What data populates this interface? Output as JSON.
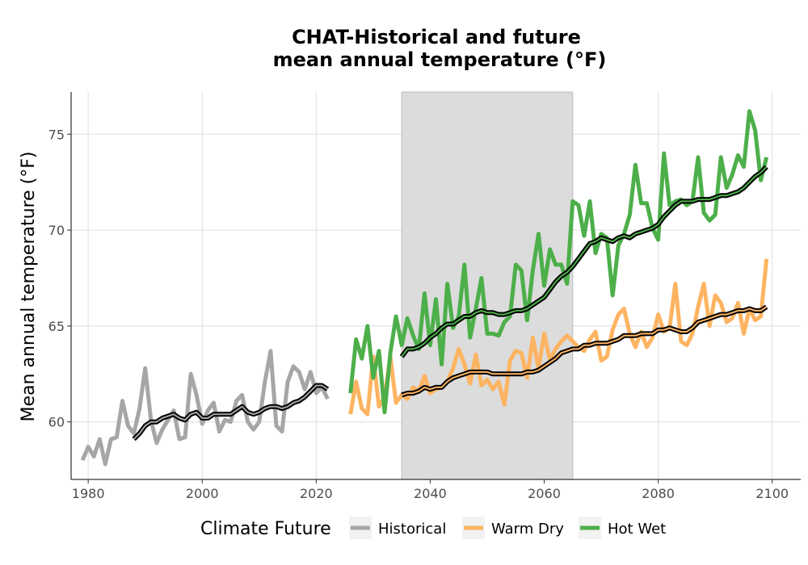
{
  "chart_data": {
    "type": "line",
    "title_line1": "CHAT-Historical and future",
    "title_line2": "mean annual temperature (°F)",
    "xlabel": "",
    "ylabel": "Mean annual temperature (°F)",
    "xlim": [
      1977,
      2105
    ],
    "ylim": [
      57,
      77.2
    ],
    "x_ticks": [
      1980,
      2000,
      2020,
      2040,
      2060,
      2080,
      2100
    ],
    "y_ticks": [
      60,
      65,
      70,
      75
    ],
    "grid": true,
    "shaded_period": [
      2035,
      2065
    ],
    "legend": {
      "title": "Climate Future",
      "position": "bottom",
      "entries": [
        "Historical",
        "Warm Dry",
        "Hot Wet"
      ]
    },
    "colors": {
      "historical": "#a6a6a6",
      "warm_dry": "#fdb462",
      "hot_wet": "#4daf4a",
      "smooth": "#000000",
      "shade": "#dcdcdc"
    },
    "series": [
      {
        "key": "historical",
        "name": "Historical",
        "x": [
          1979,
          1980,
          1981,
          1982,
          1983,
          1984,
          1985,
          1986,
          1987,
          1988,
          1989,
          1990,
          1991,
          1992,
          1993,
          1994,
          1995,
          1996,
          1997,
          1998,
          1999,
          2000,
          2001,
          2002,
          2003,
          2004,
          2005,
          2006,
          2007,
          2008,
          2009,
          2010,
          2011,
          2012,
          2013,
          2014,
          2015,
          2016,
          2017,
          2018,
          2019,
          2020,
          2021,
          2022
        ],
        "y": [
          58.0,
          58.7,
          58.2,
          59.1,
          57.8,
          59.1,
          59.2,
          61.1,
          59.8,
          59.4,
          60.7,
          62.8,
          60.1,
          58.9,
          59.6,
          60.1,
          60.6,
          59.1,
          59.2,
          62.5,
          61.4,
          59.9,
          60.6,
          61.0,
          59.5,
          60.1,
          60.0,
          61.1,
          61.4,
          60.0,
          59.6,
          60.0,
          62.1,
          63.7,
          59.8,
          59.5,
          62.1,
          62.9,
          62.6,
          61.7,
          62.6,
          61.5,
          61.8,
          61.2
        ]
      },
      {
        "key": "historical_smooth",
        "x": [
          1988,
          1989,
          1990,
          1991,
          1992,
          1993,
          1994,
          1995,
          1996,
          1997,
          1998,
          1999,
          2000,
          2001,
          2002,
          2003,
          2004,
          2005,
          2006,
          2007,
          2008,
          2009,
          2010,
          2011,
          2012,
          2013,
          2014,
          2015,
          2016,
          2017,
          2018,
          2019,
          2020,
          2021,
          2022
        ],
        "y": [
          59.1,
          59.4,
          59.8,
          60.0,
          60.0,
          60.2,
          60.3,
          60.4,
          60.2,
          60.1,
          60.4,
          60.5,
          60.2,
          60.2,
          60.4,
          60.4,
          60.4,
          60.4,
          60.6,
          60.8,
          60.5,
          60.4,
          60.5,
          60.7,
          60.8,
          60.8,
          60.7,
          60.8,
          61.0,
          61.1,
          61.3,
          61.6,
          61.9,
          61.9,
          61.7
        ]
      },
      {
        "key": "warm_dry",
        "name": "Warm Dry",
        "x": [
          2026,
          2027,
          2028,
          2029,
          2030,
          2031,
          2032,
          2033,
          2034,
          2035,
          2036,
          2037,
          2038,
          2039,
          2040,
          2041,
          2042,
          2043,
          2044,
          2045,
          2046,
          2047,
          2048,
          2049,
          2050,
          2051,
          2052,
          2053,
          2054,
          2055,
          2056,
          2057,
          2058,
          2059,
          2060,
          2061,
          2062,
          2063,
          2064,
          2065,
          2066,
          2067,
          2068,
          2069,
          2070,
          2071,
          2072,
          2073,
          2074,
          2075,
          2076,
          2077,
          2078,
          2079,
          2080,
          2081,
          2082,
          2083,
          2084,
          2085,
          2086,
          2087,
          2088,
          2089,
          2090,
          2091,
          2092,
          2093,
          2094,
          2095,
          2096,
          2097,
          2098,
          2099
        ],
        "y": [
          60.4,
          62.1,
          60.7,
          60.4,
          63.4,
          60.8,
          61.3,
          63.4,
          61.0,
          61.4,
          61.2,
          61.8,
          61.6,
          62.4,
          61.5,
          61.7,
          61.8,
          62.1,
          62.8,
          63.8,
          63.0,
          62.0,
          63.5,
          61.9,
          62.2,
          61.7,
          62.1,
          60.9,
          63.2,
          63.7,
          63.6,
          62.3,
          64.4,
          62.8,
          64.6,
          63.2,
          63.8,
          64.2,
          64.5,
          64.2,
          63.9,
          63.7,
          64.3,
          64.7,
          63.2,
          63.4,
          64.8,
          65.6,
          65.9,
          64.6,
          63.9,
          64.7,
          63.9,
          64.4,
          65.6,
          64.7,
          64.9,
          67.2,
          64.2,
          64.0,
          64.6,
          66.0,
          67.2,
          65.0,
          66.6,
          66.2,
          65.2,
          65.4,
          66.2,
          64.6,
          65.9,
          65.3,
          65.5,
          68.5
        ]
      },
      {
        "key": "warm_dry_smooth",
        "x": [
          2035,
          2036,
          2037,
          2038,
          2039,
          2040,
          2041,
          2042,
          2043,
          2044,
          2045,
          2046,
          2047,
          2048,
          2049,
          2050,
          2051,
          2052,
          2053,
          2054,
          2055,
          2056,
          2057,
          2058,
          2059,
          2060,
          2061,
          2062,
          2063,
          2064,
          2065,
          2066,
          2067,
          2068,
          2069,
          2070,
          2071,
          2072,
          2073,
          2074,
          2075,
          2076,
          2077,
          2078,
          2079,
          2080,
          2081,
          2082,
          2083,
          2084,
          2085,
          2086,
          2087,
          2088,
          2089,
          2090,
          2091,
          2092,
          2093,
          2094,
          2095,
          2096,
          2097,
          2098,
          2099
        ],
        "y": [
          61.4,
          61.5,
          61.5,
          61.6,
          61.8,
          61.7,
          61.8,
          61.8,
          62.1,
          62.3,
          62.4,
          62.5,
          62.6,
          62.6,
          62.6,
          62.6,
          62.5,
          62.5,
          62.5,
          62.5,
          62.5,
          62.5,
          62.6,
          62.6,
          62.7,
          62.9,
          63.1,
          63.3,
          63.6,
          63.7,
          63.8,
          63.8,
          64.0,
          64.0,
          64.1,
          64.1,
          64.1,
          64.2,
          64.3,
          64.5,
          64.5,
          64.5,
          64.6,
          64.6,
          64.6,
          64.8,
          64.8,
          64.9,
          64.8,
          64.7,
          64.7,
          64.9,
          65.2,
          65.3,
          65.4,
          65.5,
          65.6,
          65.6,
          65.7,
          65.8,
          65.8,
          65.9,
          65.8,
          65.8,
          66.0
        ]
      },
      {
        "key": "hot_wet",
        "name": "Hot Wet",
        "x": [
          2026,
          2027,
          2028,
          2029,
          2030,
          2031,
          2032,
          2033,
          2034,
          2035,
          2036,
          2037,
          2038,
          2039,
          2040,
          2041,
          2042,
          2043,
          2044,
          2045,
          2046,
          2047,
          2048,
          2049,
          2050,
          2051,
          2052,
          2053,
          2054,
          2055,
          2056,
          2057,
          2058,
          2059,
          2060,
          2061,
          2062,
          2063,
          2064,
          2065,
          2066,
          2067,
          2068,
          2069,
          2070,
          2071,
          2072,
          2073,
          2074,
          2075,
          2076,
          2077,
          2078,
          2079,
          2080,
          2081,
          2082,
          2083,
          2084,
          2085,
          2086,
          2087,
          2088,
          2089,
          2090,
          2091,
          2092,
          2093,
          2094,
          2095,
          2096,
          2097,
          2098,
          2099
        ],
        "y": [
          61.5,
          64.3,
          63.3,
          65.0,
          62.3,
          63.7,
          60.5,
          63.6,
          65.5,
          64.0,
          65.4,
          64.5,
          63.8,
          66.7,
          64.0,
          66.4,
          63.0,
          67.2,
          64.9,
          65.5,
          68.2,
          64.4,
          65.9,
          67.5,
          64.6,
          64.6,
          64.5,
          65.2,
          65.5,
          68.2,
          67.9,
          65.3,
          67.9,
          69.8,
          67.1,
          69.0,
          68.2,
          68.2,
          67.2,
          71.5,
          71.3,
          69.7,
          71.5,
          68.8,
          69.8,
          69.6,
          66.6,
          69.2,
          69.8,
          70.8,
          73.4,
          71.4,
          71.4,
          70.1,
          69.5,
          74.0,
          71.3,
          71.5,
          71.6,
          71.3,
          71.5,
          73.8,
          70.9,
          70.5,
          70.8,
          73.8,
          72.2,
          72.9,
          73.9,
          73.3,
          76.2,
          75.2,
          72.6,
          73.8
        ]
      },
      {
        "key": "hot_wet_smooth",
        "x": [
          2035,
          2036,
          2037,
          2038,
          2039,
          2040,
          2041,
          2042,
          2043,
          2044,
          2045,
          2046,
          2047,
          2048,
          2049,
          2050,
          2051,
          2052,
          2053,
          2054,
          2055,
          2056,
          2057,
          2058,
          2059,
          2060,
          2061,
          2062,
          2063,
          2064,
          2065,
          2066,
          2067,
          2068,
          2069,
          2070,
          2071,
          2072,
          2073,
          2074,
          2075,
          2076,
          2077,
          2078,
          2079,
          2080,
          2081,
          2082,
          2083,
          2084,
          2085,
          2086,
          2087,
          2088,
          2089,
          2090,
          2091,
          2092,
          2093,
          2094,
          2095,
          2096,
          2097,
          2098,
          2099
        ],
        "y": [
          63.4,
          63.8,
          63.8,
          63.9,
          64.1,
          64.4,
          64.6,
          64.9,
          65.1,
          65.1,
          65.3,
          65.5,
          65.5,
          65.7,
          65.8,
          65.7,
          65.7,
          65.6,
          65.6,
          65.7,
          65.8,
          65.8,
          65.9,
          66.1,
          66.3,
          66.5,
          66.9,
          67.3,
          67.6,
          67.8,
          68.1,
          68.5,
          68.9,
          69.3,
          69.4,
          69.6,
          69.5,
          69.4,
          69.6,
          69.7,
          69.6,
          69.8,
          69.9,
          70.0,
          70.1,
          70.3,
          70.7,
          71.0,
          71.3,
          71.5,
          71.5,
          71.5,
          71.6,
          71.6,
          71.6,
          71.7,
          71.8,
          71.8,
          71.9,
          72.0,
          72.2,
          72.5,
          72.8,
          73.0,
          73.3
        ]
      }
    ]
  }
}
